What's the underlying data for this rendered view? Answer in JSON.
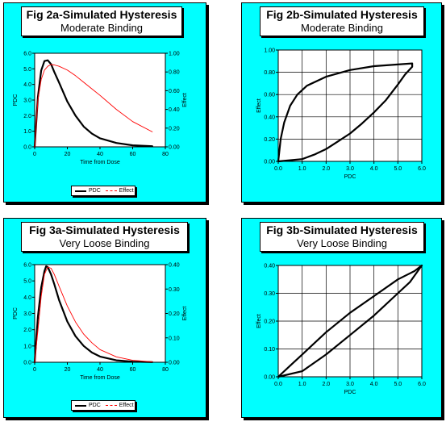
{
  "panels": [
    {
      "id": "fig2a",
      "title": "Fig 2a-Simulated Hysteresis",
      "subtitle": "Moderate Binding",
      "legend": {
        "pdc": "PDC",
        "effect": "Effect"
      }
    },
    {
      "id": "fig2b",
      "title": "Fig 2b-Simulated Hysteresis",
      "subtitle": "Moderate Binding"
    },
    {
      "id": "fig3a",
      "title": "Fig 3a-Simulated Hysteresis",
      "subtitle": "Very Loose Binding",
      "legend": {
        "pdc": "PDC",
        "effect": "Effect"
      }
    },
    {
      "id": "fig3b",
      "title": "Fig 3b-Simulated Hysteresis",
      "subtitle": "Very Loose Binding"
    }
  ],
  "colors": {
    "panel_bg": "#00ffff",
    "plot_bg": "#ffffff",
    "pdc": "#000000",
    "effect": "#ff0000"
  },
  "chart_data": [
    {
      "id": "fig2a",
      "type": "line",
      "xlabel": "Time from Dose",
      "ylabel": "PDC",
      "y2label": "Effect",
      "xlim": [
        0,
        80
      ],
      "xticks": [
        "0",
        "20",
        "40",
        "60",
        "80"
      ],
      "ylim": [
        0,
        6
      ],
      "yticks": [
        "0.0",
        "1.0",
        "2.0",
        "3.0",
        "4.0",
        "5.0",
        "6.0"
      ],
      "y2lim": [
        0,
        1
      ],
      "y2ticks": [
        "0.00",
        "0.20",
        "0.40",
        "0.60",
        "0.80",
        "1.00"
      ],
      "grid": false,
      "legend_position": "bottom",
      "series": [
        {
          "name": "PDC",
          "axis": "left",
          "style": "solid",
          "points": [
            [
              0,
              0
            ],
            [
              2,
              3.2
            ],
            [
              4,
              4.9
            ],
            [
              6,
              5.5
            ],
            [
              8,
              5.55
            ],
            [
              10,
              5.3
            ],
            [
              12,
              4.8
            ],
            [
              15,
              4.1
            ],
            [
              20,
              2.9
            ],
            [
              25,
              2.0
            ],
            [
              30,
              1.3
            ],
            [
              35,
              0.85
            ],
            [
              40,
              0.55
            ],
            [
              50,
              0.25
            ],
            [
              60,
              0.1
            ],
            [
              72,
              0.04
            ]
          ]
        },
        {
          "name": "Effect",
          "axis": "right",
          "style": "dashed",
          "points": [
            [
              0,
              0
            ],
            [
              2,
              0.5
            ],
            [
              4,
              0.72
            ],
            [
              6,
              0.82
            ],
            [
              8,
              0.86
            ],
            [
              10,
              0.88
            ],
            [
              12,
              0.875
            ],
            [
              15,
              0.86
            ],
            [
              20,
              0.82
            ],
            [
              25,
              0.76
            ],
            [
              30,
              0.69
            ],
            [
              35,
              0.62
            ],
            [
              40,
              0.55
            ],
            [
              50,
              0.4
            ],
            [
              60,
              0.27
            ],
            [
              72,
              0.16
            ]
          ]
        }
      ]
    },
    {
      "id": "fig2b",
      "type": "line",
      "xlabel": "PDC",
      "ylabel": "Effect",
      "xlim": [
        0,
        6
      ],
      "xticks": [
        "0.0",
        "1.0",
        "2.0",
        "3.0",
        "4.0",
        "5.0",
        "6.0"
      ],
      "ylim": [
        0,
        1
      ],
      "yticks": [
        "0.00",
        "0.20",
        "0.40",
        "0.60",
        "0.80",
        "1.00"
      ],
      "grid": true,
      "series": [
        {
          "name": "",
          "points": [
            [
              0,
              0
            ],
            [
              0.1,
              0.2
            ],
            [
              0.25,
              0.35
            ],
            [
              0.5,
              0.5
            ],
            [
              0.8,
              0.6
            ],
            [
              1.2,
              0.68
            ],
            [
              2.0,
              0.76
            ],
            [
              3.0,
              0.82
            ],
            [
              4.0,
              0.855
            ],
            [
              5.0,
              0.87
            ],
            [
              5.6,
              0.88
            ],
            [
              5.6,
              0.85
            ],
            [
              5.3,
              0.78
            ],
            [
              5.0,
              0.69
            ],
            [
              4.5,
              0.55
            ],
            [
              4.0,
              0.44
            ],
            [
              3.5,
              0.34
            ],
            [
              3.0,
              0.25
            ],
            [
              2.5,
              0.18
            ],
            [
              2.0,
              0.11
            ],
            [
              1.5,
              0.06
            ],
            [
              1.0,
              0.02
            ],
            [
              0.5,
              0.01
            ],
            [
              0,
              0
            ]
          ]
        }
      ]
    },
    {
      "id": "fig3a",
      "type": "line",
      "xlabel": "Time from Dose",
      "ylabel": "PDC",
      "y2label": "Effect",
      "xlim": [
        0,
        80
      ],
      "xticks": [
        "0",
        "20",
        "40",
        "60",
        "80"
      ],
      "ylim": [
        0,
        6
      ],
      "yticks": [
        "0.0",
        "1.0",
        "2.0",
        "3.0",
        "4.0",
        "5.0",
        "6.0"
      ],
      "y2lim": [
        0,
        0.4
      ],
      "y2ticks": [
        "0.00",
        "0.10",
        "0.20",
        "0.30",
        "0.40"
      ],
      "grid": false,
      "legend_position": "bottom",
      "series": [
        {
          "name": "PDC",
          "axis": "left",
          "style": "solid",
          "points": [
            [
              0,
              0
            ],
            [
              2,
              2.8
            ],
            [
              4,
              4.6
            ],
            [
              6,
              5.6
            ],
            [
              7,
              5.9
            ],
            [
              8,
              5.85
            ],
            [
              10,
              5.4
            ],
            [
              12,
              4.8
            ],
            [
              15,
              3.8
            ],
            [
              20,
              2.5
            ],
            [
              25,
              1.6
            ],
            [
              30,
              1.0
            ],
            [
              35,
              0.6
            ],
            [
              40,
              0.35
            ],
            [
              50,
              0.12
            ],
            [
              60,
              0.04
            ],
            [
              72,
              0.01
            ]
          ]
        },
        {
          "name": "Effect",
          "axis": "right",
          "style": "dashed",
          "points": [
            [
              0,
              0
            ],
            [
              2,
              0.13
            ],
            [
              4,
              0.27
            ],
            [
              6,
              0.36
            ],
            [
              8,
              0.39
            ],
            [
              10,
              0.385
            ],
            [
              12,
              0.36
            ],
            [
              15,
              0.31
            ],
            [
              20,
              0.23
            ],
            [
              25,
              0.165
            ],
            [
              30,
              0.115
            ],
            [
              35,
              0.08
            ],
            [
              40,
              0.052
            ],
            [
              50,
              0.022
            ],
            [
              60,
              0.008
            ],
            [
              72,
              0.002
            ]
          ]
        }
      ]
    },
    {
      "id": "fig3b",
      "type": "line",
      "xlabel": "PDC",
      "ylabel": "Effect",
      "xlim": [
        0,
        6
      ],
      "xticks": [
        "0.0",
        "1.0",
        "2.0",
        "3.0",
        "4.0",
        "5.0",
        "6.0"
      ],
      "ylim": [
        0,
        0.4
      ],
      "yticks": [
        "0.00",
        "0.10",
        "0.20",
        "0.30",
        "0.40"
      ],
      "grid": true,
      "series": [
        {
          "name": "",
          "points": [
            [
              0,
              0
            ],
            [
              0.5,
              0.04
            ],
            [
              1.0,
              0.08
            ],
            [
              2.0,
              0.16
            ],
            [
              3.0,
              0.23
            ],
            [
              4.0,
              0.29
            ],
            [
              5.0,
              0.35
            ],
            [
              5.7,
              0.38
            ],
            [
              6.0,
              0.4
            ],
            [
              5.5,
              0.34
            ],
            [
              5.0,
              0.3
            ],
            [
              4.0,
              0.22
            ],
            [
              3.0,
              0.15
            ],
            [
              2.0,
              0.08
            ],
            [
              1.0,
              0.02
            ],
            [
              0,
              0
            ]
          ]
        }
      ]
    }
  ]
}
